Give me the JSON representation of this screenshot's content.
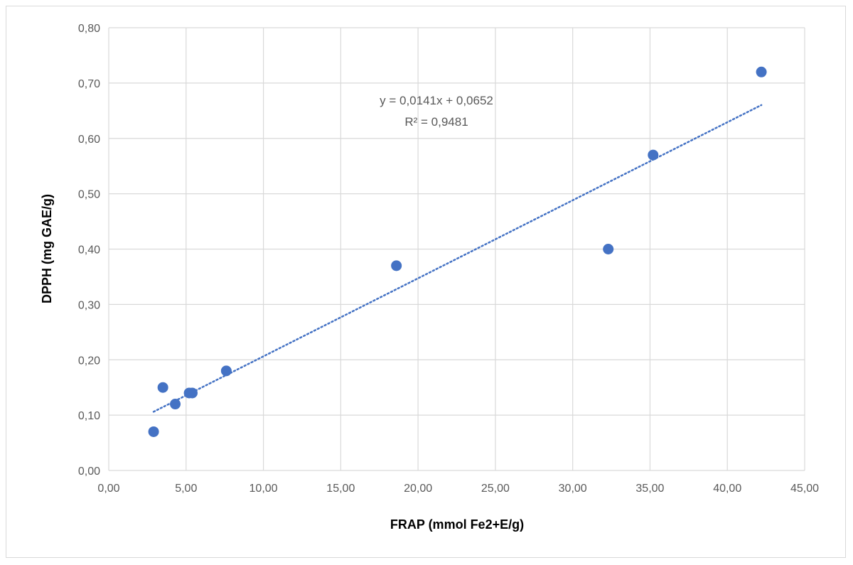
{
  "chart_data": {
    "type": "scatter",
    "xlabel": "FRAP (mmol Fe2+E/g)",
    "ylabel": "DPPH (mg GAE/g)",
    "xlim": [
      0,
      45
    ],
    "ylim": [
      0,
      0.8
    ],
    "x_ticks": [
      0,
      5,
      10,
      15,
      20,
      25,
      30,
      35,
      40,
      45
    ],
    "x_tick_labels": [
      "0,00",
      "5,00",
      "10,00",
      "15,00",
      "20,00",
      "25,00",
      "30,00",
      "35,00",
      "40,00",
      "45,00"
    ],
    "y_ticks": [
      0,
      0.1,
      0.2,
      0.3,
      0.4,
      0.5,
      0.6,
      0.7,
      0.8
    ],
    "y_tick_labels": [
      "0,00",
      "0,10",
      "0,20",
      "0,30",
      "0,40",
      "0,50",
      "0,60",
      "0,70",
      "0,80"
    ],
    "grid": true,
    "series": [
      {
        "points": [
          {
            "x": 2.9,
            "y": 0.07
          },
          {
            "x": 3.5,
            "y": 0.15
          },
          {
            "x": 4.3,
            "y": 0.12
          },
          {
            "x": 5.2,
            "y": 0.14
          },
          {
            "x": 5.4,
            "y": 0.14
          },
          {
            "x": 7.6,
            "y": 0.18
          },
          {
            "x": 18.6,
            "y": 0.37
          },
          {
            "x": 32.3,
            "y": 0.4
          },
          {
            "x": 35.2,
            "y": 0.57
          },
          {
            "x": 42.2,
            "y": 0.72
          }
        ]
      }
    ],
    "trendline": {
      "type": "linear",
      "slope": 0.0141,
      "intercept": 0.0652,
      "x_range": [
        2.9,
        42.2
      ],
      "equation_label": "y = 0,0141x + 0,0652",
      "r2_label": "R² = 0,9481"
    },
    "colors": {
      "marker": "#4472c4",
      "trendline": "#4472c4",
      "grid": "#d9d9d9",
      "tick_text": "#595959"
    }
  }
}
